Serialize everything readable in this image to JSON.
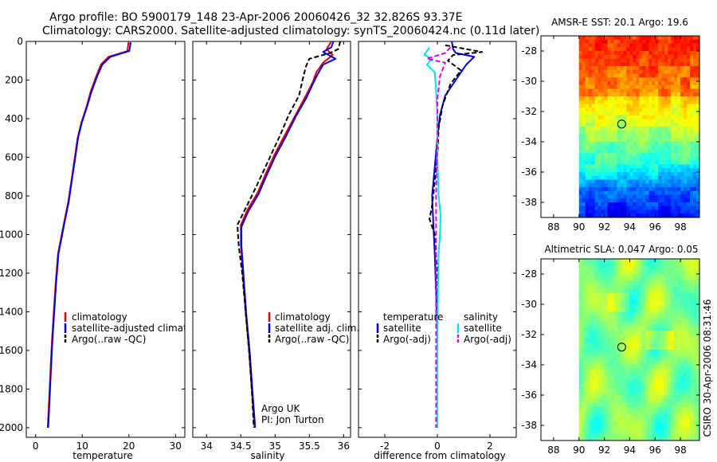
{
  "header": {
    "title_line1": "Argo profile: BO 5900179_148 23-Apr-2006 20060426_32 32.826S 93.37E",
    "title_line2": "Climatology: CARS2000. Satellite-adjusted climatology: synTS_20060424.nc (0.11d later)"
  },
  "colors": {
    "climatology": "#e00000",
    "satellite": "#0000e6",
    "argo": "#000000",
    "satellite_salinity": "#00e6e6",
    "argo_salinity": "#e600e6"
  },
  "chart_data": [
    {
      "type": "line",
      "id": "temperature",
      "xlabel": "temperature",
      "ylabel": "",
      "xlim": [
        -2,
        32
      ],
      "ylim": [
        2050,
        0
      ],
      "xticks": [
        0,
        10,
        20,
        30
      ],
      "xtick_labels": [
        "0",
        "10",
        "20",
        "30"
      ],
      "yticks": [
        0,
        200,
        400,
        600,
        800,
        1000,
        1200,
        1400,
        1600,
        1800,
        2000
      ],
      "ytick_labels": [
        "0",
        "200",
        "400",
        "600",
        "800",
        "1000",
        "1200",
        "1400",
        "1600",
        "1800",
        "2000"
      ],
      "legend_position": "right-middle",
      "legend": [
        "climatology",
        "satellite-adjusted climatology",
        "Argo(..raw -QC)"
      ],
      "series": [
        {
          "name": "climatology",
          "color_key": "climatology",
          "dash": false,
          "points": [
            [
              19.9,
              5
            ],
            [
              19.7,
              50
            ],
            [
              15.6,
              80
            ],
            [
              14,
              120
            ],
            [
              13,
              180
            ],
            [
              11.8,
              260
            ],
            [
              10.9,
              340
            ],
            [
              9.8,
              420
            ],
            [
              9,
              500
            ],
            [
              8.4,
              600
            ],
            [
              7.8,
              700
            ],
            [
              7,
              830
            ],
            [
              6,
              950
            ],
            [
              4.8,
              1100
            ],
            [
              4.3,
              1250
            ],
            [
              3.9,
              1400
            ],
            [
              3.5,
              1550
            ],
            [
              3.2,
              1700
            ],
            [
              2.9,
              1850
            ],
            [
              2.6,
              2000
            ]
          ]
        },
        {
          "name": "satellite-adjusted climatology",
          "color_key": "satellite",
          "dash": false,
          "points": [
            [
              20.4,
              5
            ],
            [
              20.1,
              50
            ],
            [
              16,
              80
            ],
            [
              14.3,
              120
            ],
            [
              13.2,
              180
            ],
            [
              12,
              260
            ],
            [
              11,
              340
            ],
            [
              9.9,
              420
            ],
            [
              9.1,
              500
            ],
            [
              8.5,
              600
            ],
            [
              7.9,
              700
            ],
            [
              7.1,
              830
            ],
            [
              6.1,
              950
            ],
            [
              4.9,
              1100
            ],
            [
              4.4,
              1250
            ],
            [
              4,
              1400
            ],
            [
              3.6,
              1550
            ],
            [
              3.3,
              1700
            ],
            [
              3,
              1850
            ],
            [
              2.7,
              2000
            ]
          ]
        }
      ]
    },
    {
      "type": "line",
      "id": "salinity",
      "xlabel": "salinity",
      "ylabel": "",
      "xlim": [
        33.8,
        36.1
      ],
      "ylim": [
        2050,
        0
      ],
      "xticks": [
        34,
        34.5,
        35,
        35.5,
        36
      ],
      "xtick_labels": [
        "34",
        "34.5",
        "35",
        "35.5",
        "36"
      ],
      "legend_position": "right-middle",
      "legend": [
        "climatology",
        "satellite adj. clim.",
        "Argo(..raw -QC)"
      ],
      "annotation": [
        "Argo UK",
        "PI: Jon Turton"
      ],
      "series": [
        {
          "name": "climatology",
          "color_key": "climatology",
          "dash": false,
          "points": [
            [
              35.82,
              0
            ],
            [
              35.75,
              40
            ],
            [
              35.84,
              70
            ],
            [
              35.7,
              110
            ],
            [
              35.6,
              160
            ],
            [
              35.55,
              210
            ],
            [
              35.45,
              280
            ],
            [
              35.3,
              380
            ],
            [
              35.15,
              480
            ],
            [
              35,
              580
            ],
            [
              34.87,
              680
            ],
            [
              34.75,
              780
            ],
            [
              34.6,
              870
            ],
            [
              34.5,
              950
            ],
            [
              34.5,
              1050
            ],
            [
              34.53,
              1200
            ],
            [
              34.57,
              1400
            ],
            [
              34.62,
              1600
            ],
            [
              34.66,
              1800
            ],
            [
              34.7,
              2000
            ]
          ]
        },
        {
          "name": "satellite adj. clim.",
          "color_key": "satellite",
          "dash": false,
          "points": [
            [
              35.85,
              0
            ],
            [
              35.82,
              30
            ],
            [
              35.7,
              55
            ],
            [
              35.88,
              90
            ],
            [
              35.7,
              120
            ],
            [
              35.62,
              170
            ],
            [
              35.55,
              220
            ],
            [
              35.46,
              290
            ],
            [
              35.3,
              390
            ],
            [
              35.16,
              490
            ],
            [
              35.01,
              590
            ],
            [
              34.88,
              690
            ],
            [
              34.76,
              790
            ],
            [
              34.61,
              880
            ],
            [
              34.51,
              960
            ],
            [
              34.51,
              1060
            ],
            [
              34.54,
              1210
            ],
            [
              34.58,
              1410
            ],
            [
              34.63,
              1610
            ],
            [
              34.67,
              1810
            ],
            [
              34.71,
              2000
            ]
          ]
        },
        {
          "name": "Argo(..raw -QC)",
          "color_key": "argo",
          "dash": true,
          "points": [
            [
              35.95,
              0
            ],
            [
              35.92,
              40
            ],
            [
              35.8,
              60
            ],
            [
              35.7,
              70
            ],
            [
              35.5,
              90
            ],
            [
              35.45,
              130
            ],
            [
              35.4,
              200
            ],
            [
              35.35,
              280
            ],
            [
              35.2,
              380
            ],
            [
              35.08,
              480
            ],
            [
              34.95,
              580
            ],
            [
              34.82,
              680
            ],
            [
              34.66,
              800
            ],
            [
              34.52,
              900
            ],
            [
              34.45,
              950
            ],
            [
              34.47,
              1060
            ],
            [
              34.52,
              1200
            ],
            [
              34.57,
              1400
            ],
            [
              34.62,
              1600
            ],
            [
              34.66,
              1800
            ],
            [
              34.69,
              2000
            ]
          ]
        }
      ]
    },
    {
      "type": "line",
      "id": "difference",
      "xlabel": "difference from climatology",
      "ylabel": "",
      "xlim": [
        -3,
        3
      ],
      "ylim": [
        2050,
        0
      ],
      "xticks": [
        -2,
        0,
        2
      ],
      "xtick_labels": [
        "-2",
        "0",
        "2"
      ],
      "legend_position": "right-middle",
      "legend_temperature": [
        "temperature",
        "satellite",
        "Argo(-adj)"
      ],
      "legend_salinity": [
        "salinity",
        "satellite",
        "Argo(-adj)"
      ],
      "series": [
        {
          "name": "temperature satellite",
          "color_key": "satellite",
          "dash": false,
          "points": [
            [
              0.55,
              0
            ],
            [
              0.6,
              40
            ],
            [
              0.7,
              60
            ],
            [
              1.4,
              80
            ],
            [
              1.1,
              120
            ],
            [
              0.8,
              180
            ],
            [
              0.3,
              280
            ],
            [
              0.1,
              380
            ],
            [
              0,
              500
            ],
            [
              -0.1,
              650
            ],
            [
              -0.2,
              800
            ],
            [
              -0.15,
              950
            ],
            [
              -0.1,
              1100
            ],
            [
              -0.05,
              1300
            ],
            [
              0,
              1500
            ],
            [
              0,
              1800
            ],
            [
              0,
              2000
            ]
          ]
        },
        {
          "name": "temperature Argo(-adj)",
          "color_key": "argo",
          "dash": true,
          "points": [
            [
              0.3,
              20
            ],
            [
              1.7,
              55
            ],
            [
              0.6,
              70
            ],
            [
              0.4,
              100
            ],
            [
              0.9,
              150
            ],
            [
              0.5,
              220
            ],
            [
              0.2,
              330
            ],
            [
              0.05,
              450
            ],
            [
              0,
              600
            ],
            [
              -0.2,
              850
            ],
            [
              -0.3,
              920
            ],
            [
              -0.1,
              1000
            ],
            [
              0,
              1200
            ],
            [
              0,
              1500
            ],
            [
              0,
              2000
            ]
          ]
        },
        {
          "name": "salinity satellite",
          "color_key": "satellite_salinity",
          "dash": false,
          "points": [
            [
              -0.3,
              30
            ],
            [
              -0.5,
              70
            ],
            [
              -0.2,
              90
            ],
            [
              -0.4,
              120
            ],
            [
              -0.1,
              160
            ],
            [
              -0.05,
              250
            ],
            [
              0,
              400
            ],
            [
              0,
              600
            ],
            [
              0.05,
              800
            ],
            [
              0.12,
              900
            ],
            [
              0.1,
              1000
            ],
            [
              0.05,
              1100
            ],
            [
              0.02,
              1300
            ],
            [
              0,
              1600
            ],
            [
              0,
              2000
            ]
          ]
        },
        {
          "name": "salinity Argo(-adj)",
          "color_key": "argo_salinity",
          "dash": true,
          "points": [
            [
              0.5,
              30
            ],
            [
              0.3,
              60
            ],
            [
              -0.4,
              90
            ],
            [
              0.3,
              110
            ],
            [
              0.1,
              180
            ],
            [
              0,
              300
            ],
            [
              0,
              500
            ],
            [
              -0.05,
              800
            ],
            [
              -0.05,
              1200
            ],
            [
              -0.05,
              1600
            ],
            [
              -0.05,
              2000
            ]
          ]
        }
      ]
    },
    {
      "type": "heatmap",
      "id": "amsre_sst",
      "title": "AMSR-E SST: 20.1 Argo: 19.6",
      "xlim": [
        87,
        99.5
      ],
      "ylim": [
        -39,
        -27
      ],
      "xticks": [
        88,
        90,
        92,
        94,
        96,
        98
      ],
      "xtick_labels": [
        "88",
        "90",
        "92",
        "94",
        "96",
        "98"
      ],
      "yticks": [
        -28,
        -30,
        -32,
        -34,
        -36,
        -38
      ],
      "ytick_labels": [
        "-28",
        "-30",
        "-32",
        "-34",
        "-36",
        "-38"
      ],
      "data_xlim": [
        90,
        99.5
      ],
      "marker": [
        93.37,
        -32.826
      ]
    },
    {
      "type": "heatmap",
      "id": "altimetric_sla",
      "title": "Altimetric SLA: 0.047 Argo: 0.05",
      "xlim": [
        87,
        99.5
      ],
      "ylim": [
        -39,
        -27
      ],
      "xticks": [
        88,
        90,
        92,
        94,
        96,
        98
      ],
      "xtick_labels": [
        "88",
        "90",
        "92",
        "94",
        "96",
        "98"
      ],
      "yticks": [
        -28,
        -30,
        -32,
        -34,
        -36,
        -38
      ],
      "ytick_labels": [
        "-28",
        "-30",
        "-32",
        "-34",
        "-36",
        "-38"
      ],
      "data_xlim": [
        90,
        99.5
      ],
      "marker": [
        93.37,
        -32.826
      ],
      "side_label": "CSIRO 30-Apr-2006 08:31:46"
    }
  ]
}
